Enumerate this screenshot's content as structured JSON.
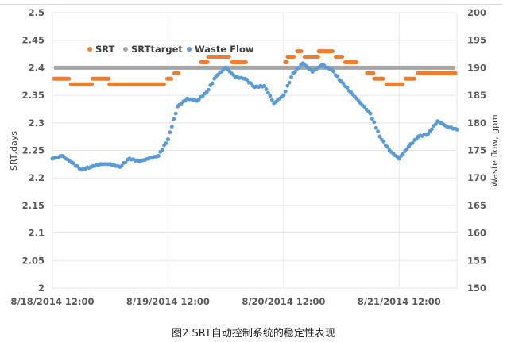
{
  "caption": "图2 SRT自动控制系统的稳定性表现",
  "chart_data": {
    "type": "scatter",
    "title": "",
    "xlabel": "",
    "ylabel": "SRT,days",
    "y2label": "Waste flow, gpm",
    "xlim": [
      "2014-08-18 12:00",
      "2014-08-22 00:00"
    ],
    "ylim": [
      2,
      2.5
    ],
    "y2lim": [
      150,
      200
    ],
    "x_ticks": [
      {
        "x": "2014-08-18 12:00",
        "label": "8/18/2014 12:00"
      },
      {
        "x": "2014-08-19 12:00",
        "label": "8/19/2014 12:00"
      },
      {
        "x": "2014-08-20 12:00",
        "label": "8/20/2014 12:00"
      },
      {
        "x": "2014-08-21 12:00",
        "label": "8/21/2014 12:00"
      }
    ],
    "y_ticks": [
      "2",
      "2.05",
      "2.1",
      "2.15",
      "2.2",
      "2.25",
      "2.3",
      "2.35",
      "2.4",
      "2.45",
      "2.5"
    ],
    "y2_ticks": [
      "150",
      "155",
      "160",
      "165",
      "170",
      "175",
      "180",
      "185",
      "190",
      "195",
      "200"
    ],
    "grid": true,
    "legend_position": "top",
    "series": [
      {
        "name": "SRT",
        "axis": "left",
        "color": "#ED7D31",
        "segments": [
          [
            "2014-08-18 12:00",
            "2014-08-18 15:45",
            2.38
          ],
          [
            "2014-08-18 15:30",
            "2014-08-18 20:30",
            2.37
          ],
          [
            "2014-08-18 20:00",
            "2014-08-19 00:00",
            2.38
          ],
          [
            "2014-08-18 23:30",
            "2014-08-19 11:30",
            2.37
          ],
          [
            "2014-08-19 11:30",
            "2014-08-19 13:00",
            2.38
          ],
          [
            "2014-08-19 13:00",
            "2014-08-19 14:30",
            2.39
          ],
          [
            "2014-08-19 18:30",
            "2014-08-19 20:30",
            2.41
          ],
          [
            "2014-08-19 20:00",
            "2014-08-20 01:00",
            2.42
          ],
          [
            "2014-08-20 01:00",
            "2014-08-20 04:30",
            2.41
          ],
          [
            "2014-08-20 12:00",
            "2014-08-20 13:00",
            2.41
          ],
          [
            "2014-08-20 12:30",
            "2014-08-20 14:30",
            2.42
          ],
          [
            "2014-08-20 14:30",
            "2014-08-20 16:00",
            2.43
          ],
          [
            "2014-08-20 16:00",
            "2014-08-20 19:30",
            2.42
          ],
          [
            "2014-08-20 19:00",
            "2014-08-20 22:30",
            2.43
          ],
          [
            "2014-08-20 22:30",
            "2014-08-21 00:30",
            2.42
          ],
          [
            "2014-08-21 00:30",
            "2014-08-21 03:30",
            2.41
          ],
          [
            "2014-08-21 05:00",
            "2014-08-21 07:00",
            2.39
          ],
          [
            "2014-08-21 06:30",
            "2014-08-21 09:00",
            2.38
          ],
          [
            "2014-08-21 09:00",
            "2014-08-21 13:00",
            2.37
          ],
          [
            "2014-08-21 13:00",
            "2014-08-21 15:30",
            2.38
          ],
          [
            "2014-08-21 15:30",
            "2014-08-22 00:00",
            2.39
          ]
        ]
      },
      {
        "name": "SRTtarget",
        "axis": "left",
        "color": "#A5A5A5",
        "segments": [
          [
            "2014-08-18 12:00",
            "2014-08-22 00:00",
            2.4
          ]
        ]
      },
      {
        "name": "Waste Flow",
        "axis": "right",
        "color": "#5B9BD5",
        "points": [
          [
            "2014-08-18 12:00",
            173.5
          ],
          [
            "2014-08-18 14:00",
            174
          ],
          [
            "2014-08-18 16:00",
            172.8
          ],
          [
            "2014-08-18 18:00",
            171.5
          ],
          [
            "2014-08-18 20:00",
            172
          ],
          [
            "2014-08-18 22:00",
            172.5
          ],
          [
            "2014-08-19 00:00",
            172.5
          ],
          [
            "2014-08-19 02:00",
            172
          ],
          [
            "2014-08-19 04:00",
            173.5
          ],
          [
            "2014-08-19 06:00",
            173
          ],
          [
            "2014-08-19 08:00",
            173.5
          ],
          [
            "2014-08-19 10:00",
            174
          ],
          [
            "2014-08-19 12:00",
            177
          ],
          [
            "2014-08-19 14:00",
            183
          ],
          [
            "2014-08-19 16:00",
            184.4
          ],
          [
            "2014-08-19 18:00",
            184
          ],
          [
            "2014-08-19 20:00",
            185.5
          ],
          [
            "2014-08-19 22:00",
            188.5
          ],
          [
            "2014-08-20 00:00",
            190
          ],
          [
            "2014-08-20 02:00",
            188.3
          ],
          [
            "2014-08-20 04:00",
            188
          ],
          [
            "2014-08-20 06:00",
            186.5
          ],
          [
            "2014-08-20 08:00",
            186.7
          ],
          [
            "2014-08-20 10:00",
            183.6
          ],
          [
            "2014-08-20 12:00",
            185
          ],
          [
            "2014-08-20 14:00",
            189
          ],
          [
            "2014-08-20 16:00",
            190.8
          ],
          [
            "2014-08-20 18:00",
            189.3
          ],
          [
            "2014-08-20 20:00",
            190.5
          ],
          [
            "2014-08-20 22:00",
            189.6
          ],
          [
            "2014-08-21 00:00",
            187.5
          ],
          [
            "2014-08-21 02:00",
            185.5
          ],
          [
            "2014-08-21 04:00",
            183.6
          ],
          [
            "2014-08-21 06:00",
            181.7
          ],
          [
            "2014-08-21 08:00",
            177.5
          ],
          [
            "2014-08-21 10:00",
            175
          ],
          [
            "2014-08-21 12:00",
            173.5
          ],
          [
            "2014-08-21 14:00",
            175.7
          ],
          [
            "2014-08-21 16:00",
            177.5
          ],
          [
            "2014-08-21 18:00",
            178
          ],
          [
            "2014-08-21 20:00",
            180.3
          ],
          [
            "2014-08-21 22:00",
            179.3
          ],
          [
            "2014-08-22 00:00",
            178.8
          ]
        ]
      }
    ]
  }
}
